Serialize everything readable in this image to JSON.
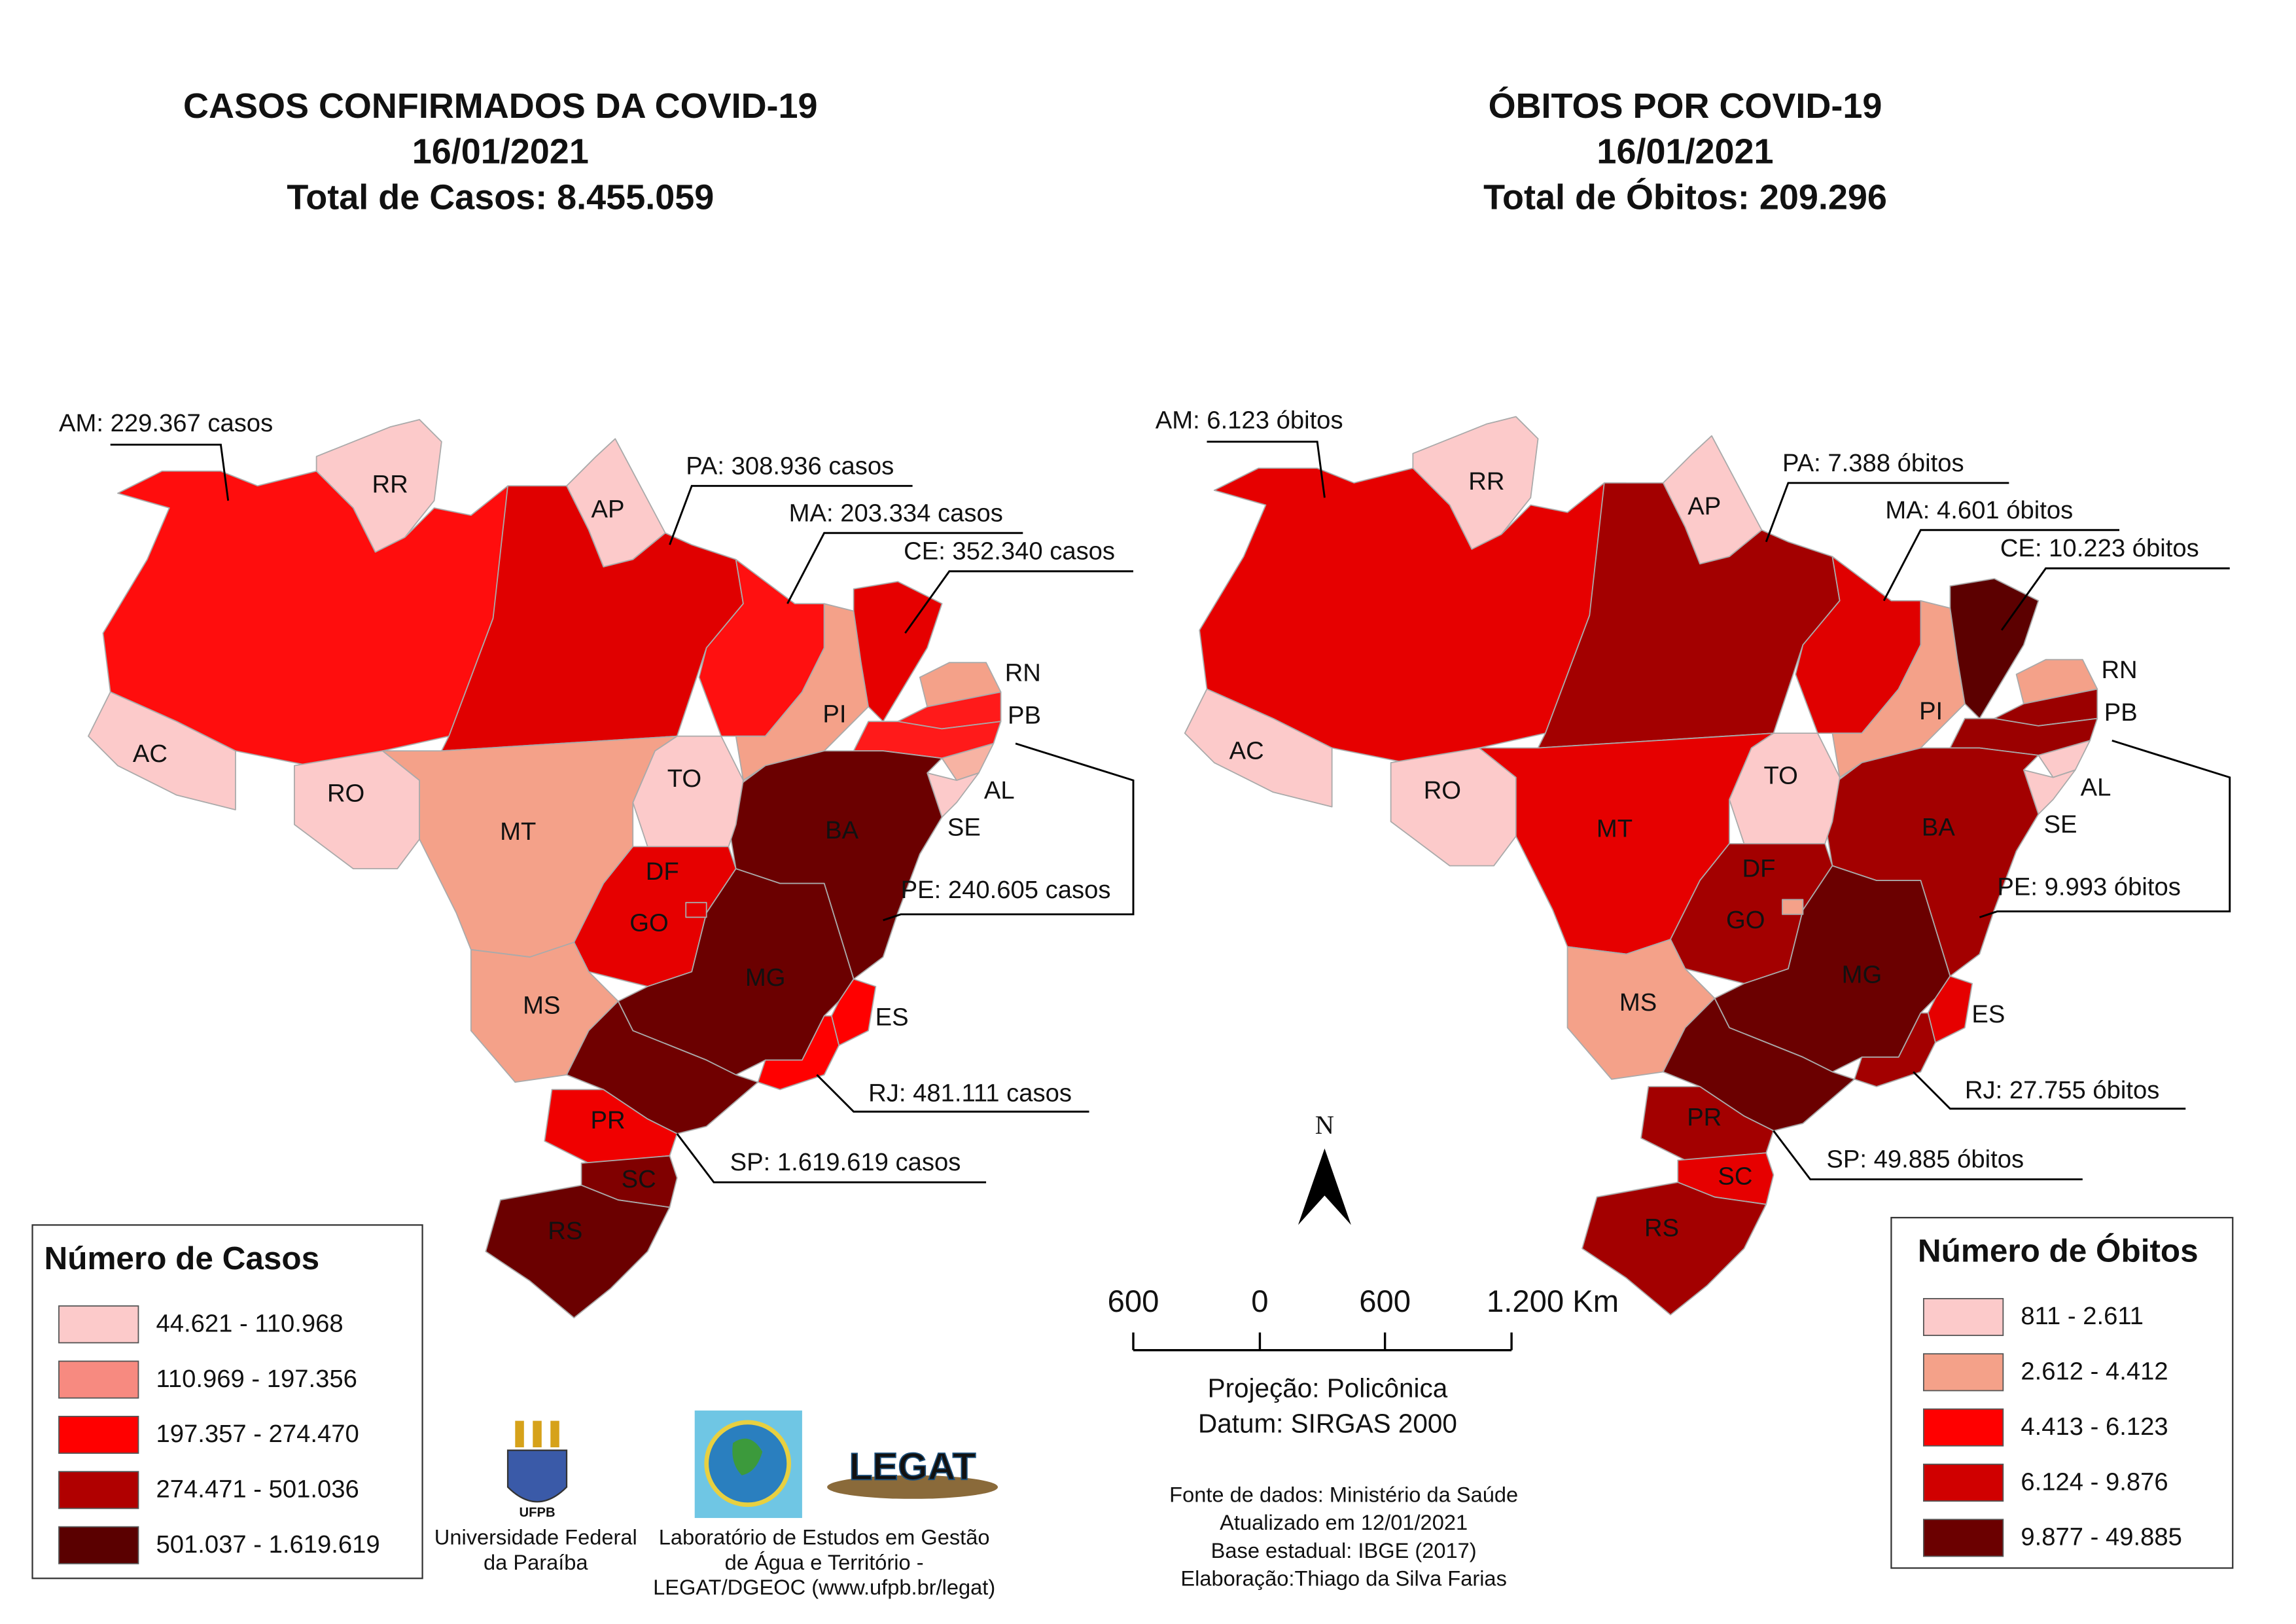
{
  "left_map": {
    "title": [
      "CASOS CONFIRMADOS DA COVID-19",
      "16/01/2021",
      "Total de Casos: 8.455.059"
    ],
    "states": [
      {
        "label": "RR",
        "color": "#fccaca"
      },
      {
        "label": "AP",
        "color": "#fccaca"
      },
      {
        "color": "#ff0d0d"
      },
      {
        "label": "AC",
        "color": "#fccaca"
      },
      {
        "label": "RO",
        "color": "#fccaca"
      },
      {
        "color": "#e00000"
      },
      {
        "color": "#ff1010"
      },
      {
        "label": "PI",
        "color": "#f4a189"
      },
      {
        "color": "#e60000"
      },
      {
        "label": "RN",
        "color": "#f4a189"
      },
      {
        "label": "PB",
        "color": "#ff1a1a"
      },
      {
        "color": "#ff1a1a"
      },
      {
        "label": "AL",
        "color": "#f7b3a3"
      },
      {
        "label": "SE",
        "color": "#fccaca"
      },
      {
        "label": "BA",
        "color": "#6b0000"
      },
      {
        "label": "TO",
        "color": "#fccaca"
      },
      {
        "label": "MT",
        "color": "#f4a189"
      },
      {
        "label": "GO",
        "color": "#e60000"
      },
      {
        "label": "MG",
        "color": "#6b0000"
      },
      {
        "label": "ES",
        "color": "#ff0000"
      },
      {
        "color": "#ff0000"
      },
      {
        "label": "MS",
        "color": "#f4a189"
      },
      {
        "color": "#700000"
      },
      {
        "label": "PR",
        "color": "#f00000"
      },
      {
        "label": "SC",
        "color": "#800000"
      },
      {
        "label": "RS",
        "color": "#6b0000"
      },
      {
        "label": "DF",
        "color": "#e60000"
      }
    ],
    "annotations": [
      "AM: 229.367 casos",
      "PA: 308.936 casos",
      "MA: 203.334 casos",
      "CE: 352.340 casos",
      "PE: 240.605 casos",
      "RJ: 481.111 casos",
      "SP: 1.619.619 casos"
    ],
    "legend": {
      "title": "Número de Casos",
      "items": [
        {
          "label": "44.621 - 110.968",
          "color": "#fccaca"
        },
        {
          "label": "110.969 - 197.356",
          "color": "#f78a80"
        },
        {
          "label": "197.357 - 274.470",
          "color": "#ff0000"
        },
        {
          "label": "274.471 - 501.036",
          "color": "#b00000"
        },
        {
          "label": "501.037 - 1.619.619",
          "color": "#5a0000"
        }
      ]
    }
  },
  "right_map": {
    "title": [
      "ÓBITOS POR COVID-19",
      "16/01/2021",
      "Total de Óbitos: 209.296"
    ],
    "states": [
      {
        "label": "RR",
        "color": "#fccaca"
      },
      {
        "label": "AP",
        "color": "#fccaca"
      },
      {
        "color": "#e60000"
      },
      {
        "label": "AC",
        "color": "#fccaca"
      },
      {
        "label": "RO",
        "color": "#fccaca"
      },
      {
        "color": "#a30000"
      },
      {
        "color": "#e00000"
      },
      {
        "label": "PI",
        "color": "#f4a189"
      },
      {
        "color": "#5c0000"
      },
      {
        "label": "RN",
        "color": "#f4a189"
      },
      {
        "label": "PB",
        "color": "#9b0000"
      },
      {
        "color": "#9b0000"
      },
      {
        "label": "AL",
        "color": "#fccaca"
      },
      {
        "label": "SE",
        "color": "#fccaca"
      },
      {
        "label": "BA",
        "color": "#a30000"
      },
      {
        "label": "TO",
        "color": "#fccaca"
      },
      {
        "label": "MT",
        "color": "#e60000"
      },
      {
        "label": "GO",
        "color": "#a30000"
      },
      {
        "label": "MG",
        "color": "#6b0000"
      },
      {
        "label": "ES",
        "color": "#e60000"
      },
      {
        "color": "#a30000"
      },
      {
        "label": "MS",
        "color": "#f4a189"
      },
      {
        "color": "#6b0000"
      },
      {
        "label": "PR",
        "color": "#a30000"
      },
      {
        "label": "SC",
        "color": "#e60000"
      },
      {
        "label": "RS",
        "color": "#a30000"
      },
      {
        "label": "DF",
        "color": "#f4a189"
      }
    ],
    "annotations": [
      "AM: 6.123 óbitos",
      "PA: 7.388 óbitos",
      "MA: 4.601 óbitos",
      "CE: 10.223 óbitos",
      "PE: 9.993 óbitos",
      "RJ: 27.755 óbitos",
      "SP: 49.885 óbitos"
    ],
    "legend": {
      "title": "Número de Óbitos",
      "items": [
        {
          "label": "811 - 2.611",
          "color": "#fccaca"
        },
        {
          "label": "2.612 - 4.412",
          "color": "#f4a189"
        },
        {
          "label": "4.413 - 6.123",
          "color": "#ff0000"
        },
        {
          "label": "6.124 - 9.876",
          "color": "#d00000"
        },
        {
          "label": "9.877 - 49.885",
          "color": "#6b0000"
        }
      ]
    }
  },
  "north_arrow": "N",
  "scale_bar": {
    "labels": [
      "600",
      "0",
      "600",
      "1.200 Km"
    ],
    "notes": [
      "Projeção: Policônica",
      "Datum: SIRGAS 2000"
    ]
  },
  "logos": {
    "ufpb": "UFPB",
    "legat": "LEGAT"
  },
  "credits": {
    "ufpb": [
      "Universidade Federal",
      "da Paraíba"
    ],
    "legat": [
      "Laboratório de Estudos em Gestão",
      "de Água e Território -",
      "LEGAT/DGEOC (www.ufpb.br/legat)"
    ],
    "sources": [
      "Fonte de dados: Ministério da Saúde",
      "Atualizado em 12/01/2021",
      "Base estadual: IBGE (2017)",
      "Elaboração:Thiago da Silva Farias"
    ]
  }
}
